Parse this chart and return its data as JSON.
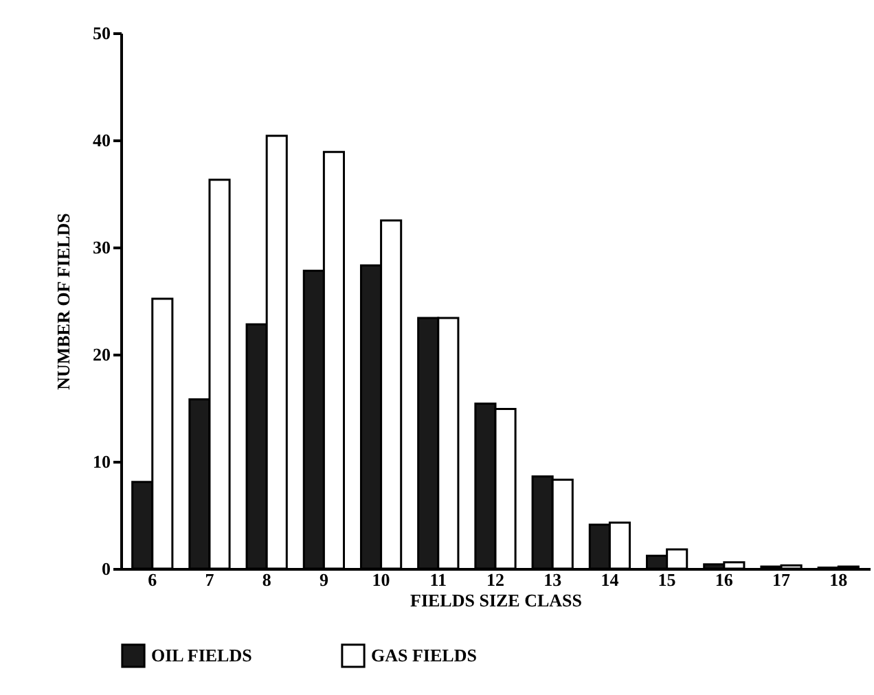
{
  "chart_data": {
    "type": "bar",
    "xlabel": "FIELDS SIZE CLASS",
    "ylabel": "NUMBER OF FIELDS",
    "categories": [
      "6",
      "7",
      "8",
      "9",
      "10",
      "11",
      "12",
      "13",
      "14",
      "15",
      "16",
      "17",
      "18"
    ],
    "series": [
      {
        "name": "OIL FIELDS",
        "color": "#1a1a1a",
        "values": [
          8.1,
          15.8,
          22.8,
          27.8,
          28.3,
          23.4,
          15.4,
          8.6,
          4.1,
          1.2,
          0.4,
          0.2,
          0.1
        ]
      },
      {
        "name": "GAS FIELDS",
        "color": "#ffffff",
        "values": [
          25.2,
          36.3,
          40.4,
          38.9,
          32.5,
          23.4,
          14.9,
          8.3,
          4.3,
          1.8,
          0.6,
          0.3,
          0.2
        ]
      }
    ],
    "ylim": [
      0,
      50
    ],
    "yticks": [
      0,
      10,
      20,
      30,
      40,
      50
    ],
    "grid": false,
    "legend": "bottom"
  }
}
